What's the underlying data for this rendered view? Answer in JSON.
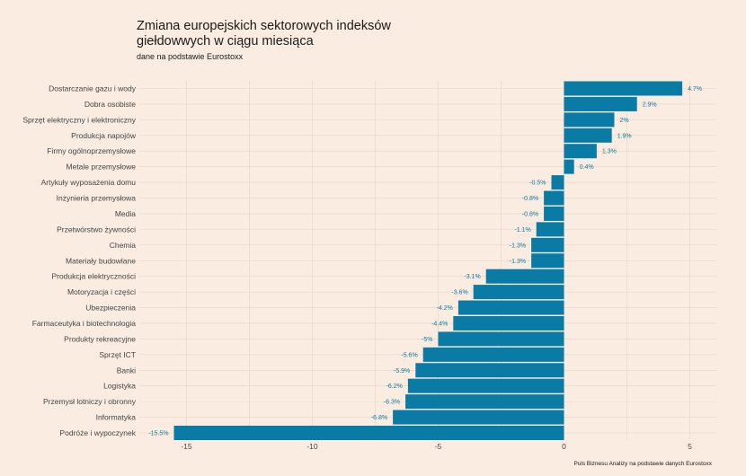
{
  "title_lines": [
    "Zmiana europejskich sektorowych indeksów",
    "giełdowwych w ciągu miesiąca"
  ],
  "subtitle": "dane na podstawie Eurostoxx",
  "caption": "Puls Biznesu Analizy na podstawie danych Eurostoxx",
  "colors": {
    "background": "#faece0",
    "bar": "#0a7ba5",
    "label": "#0a7ba5",
    "grid": "#e6d6c8"
  },
  "chart_data": {
    "type": "bar",
    "orientation": "horizontal",
    "title": "Zmiana europejskich sektorowych indeksów giełdowwych w ciągu miesiąca",
    "subtitle": "dane na podstawie Eurostoxx",
    "xlabel": "",
    "ylabel": "",
    "xlim": [
      -16.5,
      6
    ],
    "xticks": [
      -15,
      -10,
      -5,
      0,
      5
    ],
    "grid": true,
    "categories": [
      "Dostarczanie gazu i wody",
      "Dobra osobiste",
      "Sprzęt elektryczny i elektroniczny",
      "Produkcja napojów",
      "Firmy ogólnoprzemysłowe",
      "Metale przemysłowe",
      "Artykuły wyposażenia domu",
      "Inżynieria przemysłowa",
      "Media",
      "Przetwórstwo żywności",
      "Chemia",
      "Materiały budowlane",
      "Produkcja elektryczności",
      "Motoryzacja i części",
      "Ubezpieczenia",
      "Farmaceutyka i biotechnologia",
      "Produkty rekreacyjne",
      "Sprzęt ICT",
      "Banki",
      "Logistyka",
      "Przemysł lotniczy i obronny",
      "Informatyka",
      "Podróże i wypoczynek"
    ],
    "values": [
      4.7,
      2.9,
      2.0,
      1.9,
      1.3,
      0.4,
      -0.5,
      -0.8,
      -0.8,
      -1.1,
      -1.3,
      -1.3,
      -3.1,
      -3.6,
      -4.2,
      -4.4,
      -5.0,
      -5.6,
      -5.9,
      -6.2,
      -6.3,
      -6.8,
      -15.5
    ],
    "value_labels": [
      "4.7%",
      "2.9%",
      "2%",
      "1.9%",
      "1.3%",
      "0.4%",
      "-0.5%",
      "-0.8%",
      "-0.8%",
      "-1.1%",
      "-1.3%",
      "-1.3%",
      "-3.1%",
      "-3.6%",
      "-4.2%",
      "-4.4%",
      "-5%",
      "-5.6%",
      "-5.9%",
      "-6.2%",
      "-6.3%",
      "-6.8%",
      "-15.5%"
    ]
  }
}
